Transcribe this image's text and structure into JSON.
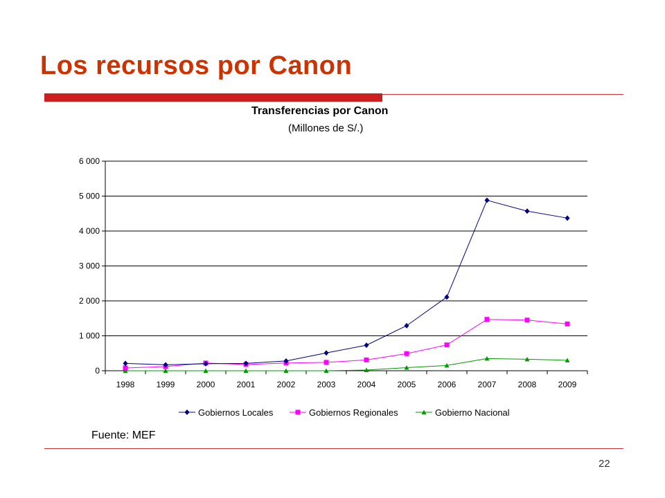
{
  "slide": {
    "title": "Los recursos por Canon",
    "source": "Fuente: MEF",
    "page_number": "22"
  },
  "colors": {
    "title": "#cc3300",
    "rule": "#cc1f1f",
    "series": [
      "#000080",
      "#ff00ff",
      "#009900"
    ]
  },
  "chart_data": {
    "type": "line",
    "title": "Transferencias por Canon",
    "subtitle": "(Millones de S/.)",
    "xlabel": "",
    "ylabel": "",
    "categories": [
      "1998",
      "1999",
      "2000",
      "2001",
      "2002",
      "2003",
      "2004",
      "2005",
      "2006",
      "2007",
      "2008",
      "2009"
    ],
    "y_ticks": [
      "0",
      "1 000",
      "2 000",
      "3 000",
      "4 000",
      "5 000",
      "6 000"
    ],
    "ylim": [
      0,
      6000
    ],
    "grid": true,
    "legend_position": "bottom",
    "series": [
      {
        "name": "Gobiernos Locales",
        "marker": "diamond",
        "values": [
          210,
          170,
          200,
          210,
          280,
          510,
          730,
          1290,
          2110,
          4880,
          4570,
          4370
        ]
      },
      {
        "name": "Gobiernos Regionales",
        "marker": "square",
        "values": [
          80,
          120,
          220,
          180,
          220,
          240,
          310,
          490,
          740,
          1470,
          1450,
          1340
        ]
      },
      {
        "name": "Gobierno Nacional",
        "marker": "triangle",
        "values": [
          0,
          0,
          0,
          0,
          0,
          0,
          20,
          90,
          150,
          350,
          330,
          300
        ]
      }
    ]
  }
}
